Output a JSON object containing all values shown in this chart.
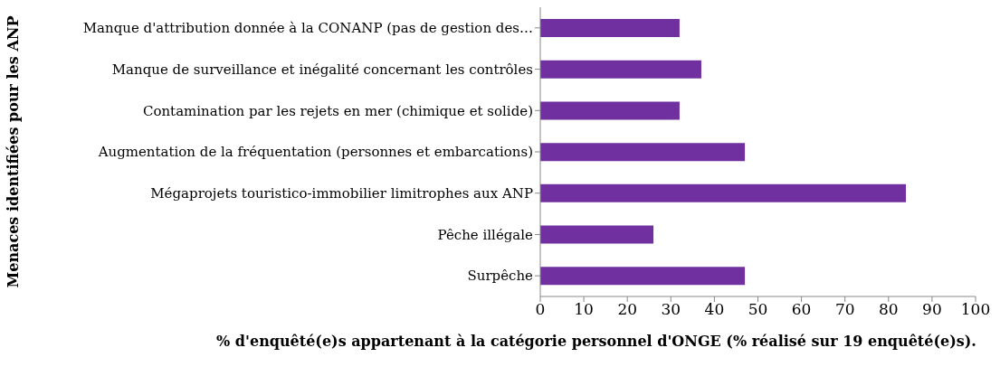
{
  "chart_data": {
    "type": "bar",
    "orientation": "horizontal",
    "xlabel": "% d'enquêté(e)s appartenant à la catégorie personnel d'ONGE (% réalisé sur 19 enquêté(e)s).",
    "ylabel": "Menaces identifiées pour les ANP",
    "categories": [
      "Manque d'attribution donnée à la CONANP (pas de gestion des…",
      "Manque de surveillance et inégalité concernant les contrôles",
      "Contamination par les rejets en mer (chimique et solide)",
      "Augmentation de la fréquentation (personnes et embarcations)",
      "Mégaprojets  touristico-immobilier limitrophes aux ANP",
      "Pêche illégale",
      "Surpêche"
    ],
    "values": [
      32,
      37,
      32,
      47,
      84,
      26,
      47
    ],
    "color": "#7030a0",
    "xlim": [
      0,
      100
    ],
    "xticks": [
      0,
      10,
      20,
      30,
      40,
      50,
      60,
      70,
      80,
      90,
      100
    ]
  }
}
